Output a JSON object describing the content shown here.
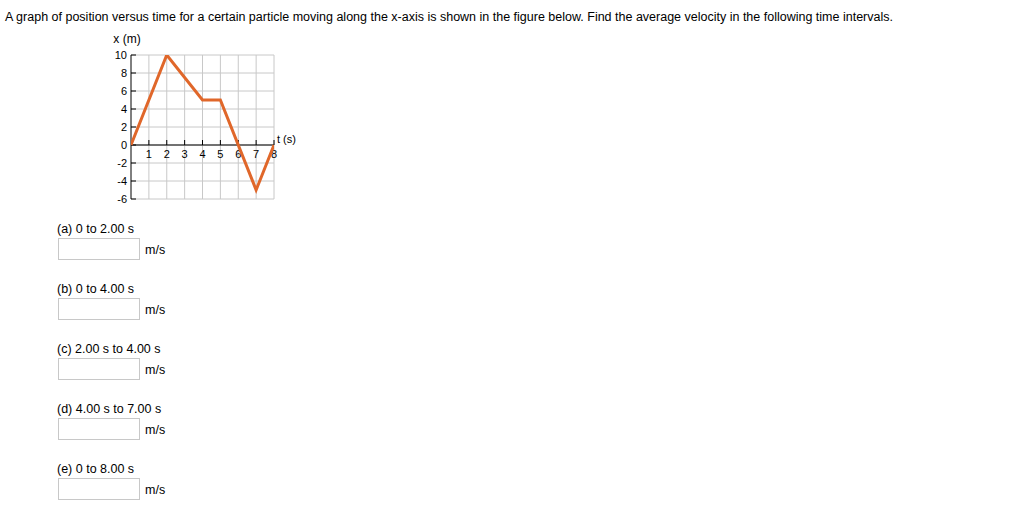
{
  "prompt": "A graph of position versus time for a certain particle moving along the x-axis is shown in the figure below. Find the average velocity in the following time intervals.",
  "chart_data": {
    "type": "line",
    "x_label": "t (s)",
    "y_label": "x (m)",
    "x": [
      0,
      2,
      4,
      5,
      7,
      8
    ],
    "values": [
      0,
      10,
      5,
      5,
      -5,
      0
    ],
    "color": "#e0672a",
    "xlim": [
      0,
      8
    ],
    "xticks": [
      1,
      2,
      3,
      4,
      5,
      6,
      7,
      8
    ],
    "ylim": [
      -6,
      10
    ],
    "yticks": [
      -6,
      -4,
      -2,
      0,
      2,
      4,
      6,
      8,
      10
    ],
    "grid": true
  },
  "parts": [
    {
      "label": "(a) 0 to 2.00 s",
      "unit": "m/s"
    },
    {
      "label": "(b) 0 to 4.00 s",
      "unit": "m/s"
    },
    {
      "label": "(c) 2.00 s to 4.00 s",
      "unit": "m/s"
    },
    {
      "label": "(d) 4.00 s to 7.00 s",
      "unit": "m/s"
    },
    {
      "label": "(e) 0 to 8.00 s",
      "unit": "m/s"
    }
  ]
}
